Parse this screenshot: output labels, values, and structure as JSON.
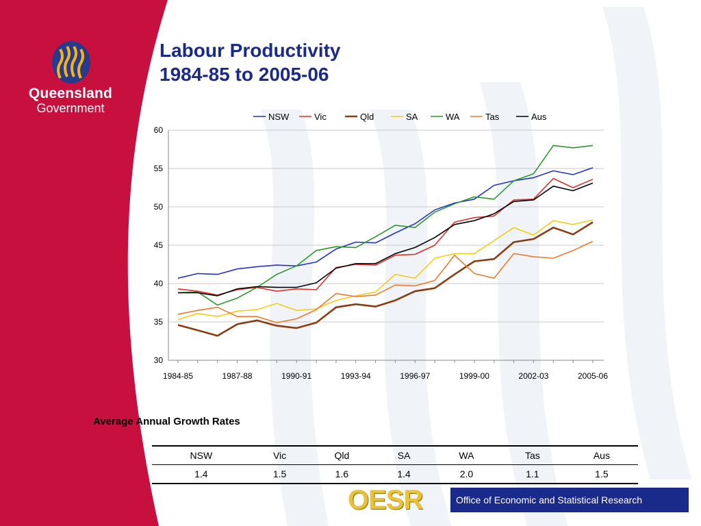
{
  "branding": {
    "logo_name": "Queensland",
    "logo_sub": "Government",
    "footer_mark": "OESR",
    "footer_text": "Office of Economic and Statistical Research"
  },
  "title_line1": "Labour Productivity",
  "title_line2": "1984-85 to 2005-06",
  "colors": {
    "red_panel": "#c8103e",
    "title_blue": "#1a2a8a",
    "NSW": "#2233cc",
    "Vic": "#e0302a",
    "Qld": "#8b3b10",
    "SA": "#f2cc1a",
    "WA": "#2a9a2a",
    "Tas": "#ec7a2a",
    "Aus": "#000000"
  },
  "chart_data": {
    "type": "line",
    "title": "",
    "xlabel": "",
    "ylabel": "",
    "ylim": [
      30,
      60
    ],
    "yticks": [
      30,
      35,
      40,
      45,
      50,
      55,
      60
    ],
    "x": [
      "1984-85",
      "1985-86",
      "1986-87",
      "1987-88",
      "1988-89",
      "1989-90",
      "1990-91",
      "1991-92",
      "1992-93",
      "1993-94",
      "1994-95",
      "1995-96",
      "1996-97",
      "1997-98",
      "1998-99",
      "1999-00",
      "2000-01",
      "2001-02",
      "2002-03",
      "2003-04",
      "2004-05",
      "2005-06"
    ],
    "xtick_labels": [
      "1984-85",
      "1987-88",
      "1990-91",
      "1993-94",
      "1996-97",
      "1999-00",
      "2002-03",
      "2005-06"
    ],
    "grid": "horizontal",
    "legend": "top",
    "series": [
      {
        "name": "NSW",
        "values": [
          40.7,
          41.3,
          41.2,
          41.9,
          42.2,
          42.4,
          42.3,
          42.8,
          44.5,
          45.4,
          45.3,
          46.6,
          47.8,
          49.6,
          50.5,
          51.0,
          52.8,
          53.4,
          53.8,
          54.7,
          54.2,
          55.1
        ]
      },
      {
        "name": "Vic",
        "values": [
          39.3,
          39.0,
          38.5,
          39.2,
          39.5,
          39.0,
          39.3,
          39.2,
          42.1,
          42.5,
          42.4,
          43.7,
          43.8,
          45.0,
          48.0,
          48.6,
          48.8,
          50.9,
          51.0,
          53.7,
          52.5,
          53.6
        ]
      },
      {
        "name": "Qld",
        "values": [
          34.6,
          33.9,
          33.2,
          34.7,
          35.2,
          34.5,
          34.2,
          34.9,
          36.9,
          37.3,
          37.0,
          37.8,
          39.0,
          39.4,
          41.2,
          42.9,
          43.2,
          45.4,
          45.8,
          47.3,
          46.4,
          48.0
        ]
      },
      {
        "name": "SA",
        "values": [
          35.3,
          36.1,
          35.7,
          36.4,
          36.6,
          37.4,
          36.5,
          36.7,
          37.8,
          38.4,
          38.9,
          41.2,
          40.7,
          43.3,
          43.9,
          43.9,
          45.6,
          47.3,
          46.3,
          48.2,
          47.7,
          48.3
        ]
      },
      {
        "name": "WA",
        "values": [
          38.8,
          38.9,
          37.2,
          38.1,
          39.5,
          41.2,
          42.3,
          44.3,
          44.8,
          44.7,
          46.1,
          47.6,
          47.3,
          49.3,
          50.4,
          51.3,
          51.0,
          53.4,
          54.3,
          58.0,
          57.7,
          58.0
        ]
      },
      {
        "name": "Tas",
        "values": [
          36.0,
          36.5,
          36.9,
          35.7,
          35.7,
          34.9,
          35.4,
          36.6,
          38.7,
          38.3,
          38.5,
          39.8,
          39.7,
          40.4,
          43.7,
          41.3,
          40.7,
          43.9,
          43.5,
          43.3,
          44.3,
          45.5
        ]
      },
      {
        "name": "Aus",
        "values": [
          38.8,
          38.8,
          38.4,
          39.3,
          39.6,
          39.5,
          39.5,
          40.1,
          42.0,
          42.6,
          42.6,
          43.9,
          44.7,
          46.0,
          47.7,
          48.2,
          49.1,
          50.7,
          50.9,
          52.7,
          52.1,
          53.1
        ]
      }
    ]
  },
  "growth": {
    "title": "Average Annual Growth Rates",
    "headers": [
      "NSW",
      "Vic",
      "Qld",
      "SA",
      "WA",
      "Tas",
      "Aus"
    ],
    "values": [
      "1.4",
      "1.5",
      "1.6",
      "1.4",
      "2.0",
      "1.1",
      "1.5"
    ]
  }
}
